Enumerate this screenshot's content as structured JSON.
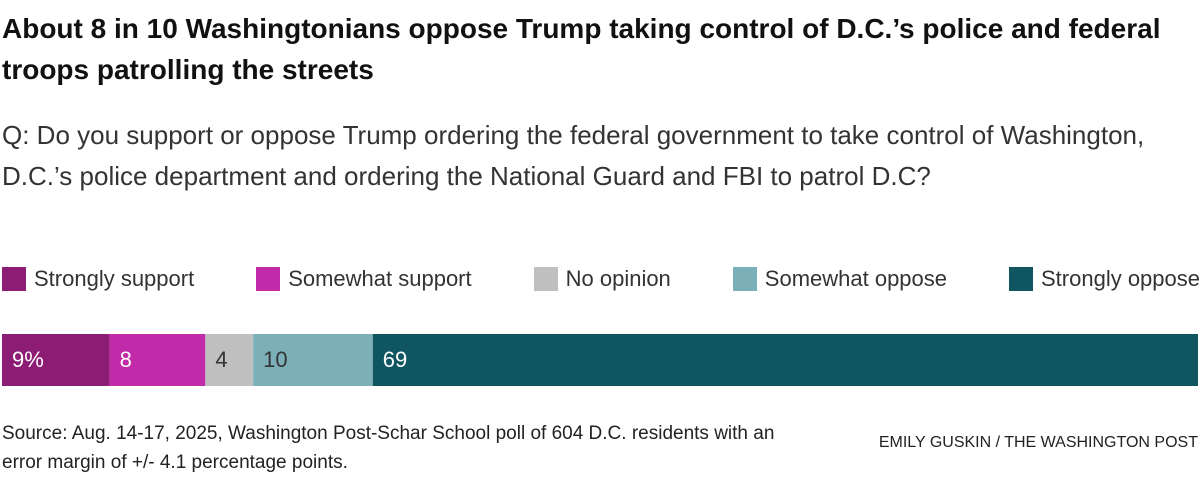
{
  "chart_data": {
    "type": "stacked-bar",
    "title": "About 8 in 10 Washingtonians oppose Trump taking control of D.C.’s police and federal troops patrolling the streets",
    "subtitle": "Q: Do you support or oppose Trump ordering the federal government to take control of Washington, D.C.’s police department and ordering the National Guard and FBI to patrol D.C?",
    "series": [
      {
        "name": "Strongly support",
        "color": "#8c1c74",
        "values": [
          9
        ],
        "value_labels": [
          "9%"
        ]
      },
      {
        "name": "Somewhat support",
        "color": "#c12aa9",
        "values": [
          8
        ]
      },
      {
        "name": "No opinion",
        "color": "#bfbfbf",
        "values": [
          4
        ]
      },
      {
        "name": "Somewhat oppose",
        "color": "#7cb0b9",
        "values": [
          10
        ]
      },
      {
        "name": "Strongly oppose",
        "color": "#0f5661",
        "values": [
          69
        ]
      }
    ],
    "source": "Source: Aug. 14-17, 2025, Washington Post-Schar School poll of 604 D.C. residents with an error margin of +/- 4.1 percentage points.",
    "credit": "EMILY GUSKIN / THE WASHINGTON POST"
  }
}
